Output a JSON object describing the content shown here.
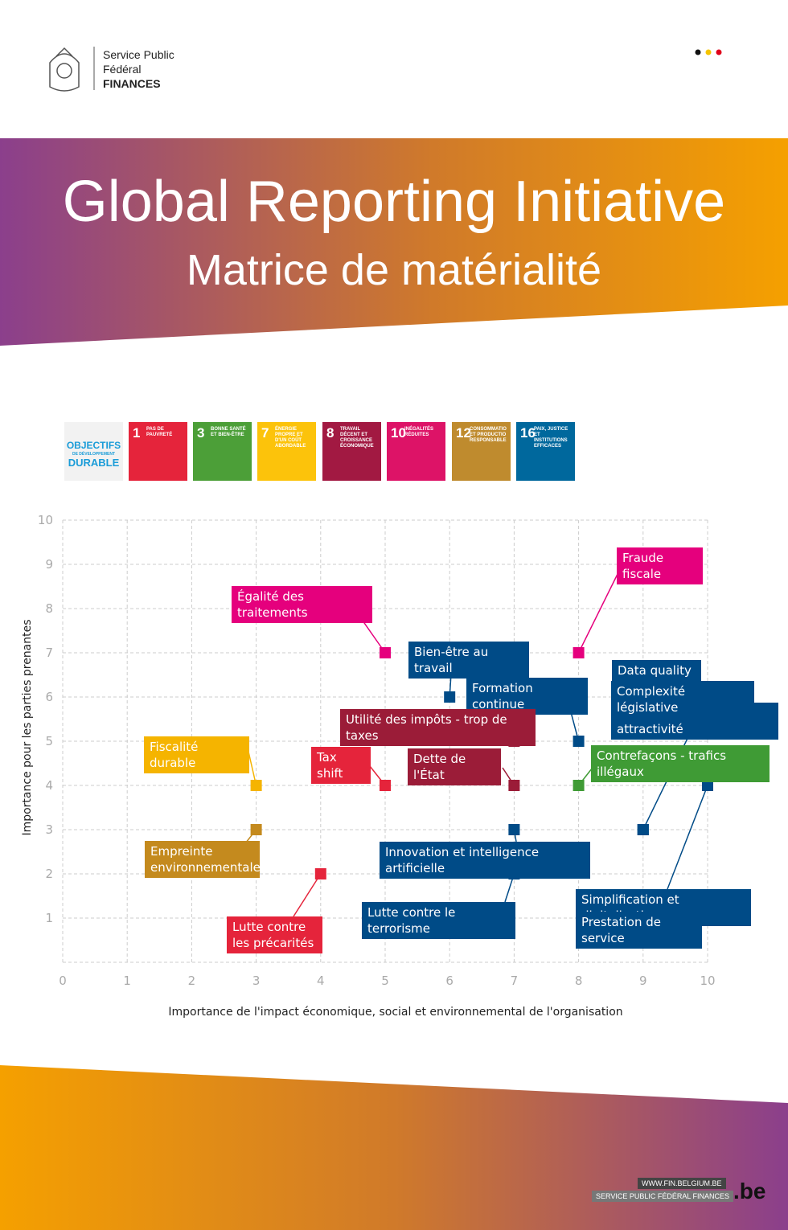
{
  "header": {
    "org": [
      "Service Public",
      "Fédéral",
      "FINANCES"
    ]
  },
  "banner": {
    "title": "Global Reporting Initiative",
    "subtitle": "Matrice de matérialité"
  },
  "sdg": {
    "logo": [
      "OBJECTIFS",
      "DE DÉVELOPPEMENT",
      "DURABLE"
    ],
    "goals": [
      {
        "number": "1",
        "label": "PAS DE PAUVRETÉ",
        "color": "#e5243b"
      },
      {
        "number": "3",
        "label": "BONNE SANTÉ ET BIEN-ÊTRE",
        "color": "#4c9f38"
      },
      {
        "number": "7",
        "label": "ÉNERGIE PROPRE ET D'UN COÛT ABORDABLE",
        "color": "#fcc30b"
      },
      {
        "number": "8",
        "label": "TRAVAIL DÉCENT ET CROISSANCE ÉCONOMIQUE",
        "color": "#a21942"
      },
      {
        "number": "10",
        "label": "INÉGALITÉS RÉDUITES",
        "color": "#dd1367"
      },
      {
        "number": "12",
        "label": "CONSOMMATIO ET PRODUCTIO RESPONSABLE",
        "color": "#bf8b2e"
      },
      {
        "number": "16",
        "label": "PAIX, JUSTICE ET INSTITUTIONS EFFICACES",
        "color": "#00689d"
      }
    ]
  },
  "chart_data": {
    "type": "scatter",
    "xlabel": "Importance de l'impact économique, social et environnemental de l'organisation",
    "ylabel": "Importance pour les parties prenantes",
    "xlim": [
      0,
      10
    ],
    "ylim": [
      0,
      10
    ],
    "xticks": [
      0,
      1,
      2,
      3,
      4,
      5,
      6,
      7,
      8,
      9,
      10
    ],
    "yticks": [
      1,
      2,
      3,
      4,
      5,
      6,
      7,
      8,
      9,
      10
    ],
    "grid": true,
    "points": [
      {
        "label": "Fraude fiscale",
        "x": 8,
        "y": 7,
        "color": "#e5007d"
      },
      {
        "label": "Égalité des traitements",
        "x": 5,
        "y": 7,
        "color": "#e5007d"
      },
      {
        "label": "Bien-être au travail",
        "x": 6,
        "y": 6,
        "color": "#004b87"
      },
      {
        "label": "Formation continue",
        "x": 8,
        "y": 5,
        "color": "#004b87"
      },
      {
        "label": "Utilité des impôts - trop de taxes",
        "x": 7,
        "y": 5,
        "color": "#9b1c38"
      },
      {
        "label": "Dette de l'État",
        "x": 7,
        "y": 4,
        "color": "#9b1c38"
      },
      {
        "label": "Tax shift",
        "x": 5,
        "y": 4,
        "color": "#e5243b"
      },
      {
        "label": "Fiscalité durable",
        "x": 3,
        "y": 4,
        "color": "#f5b400"
      },
      {
        "label": "Empreinte environnementale",
        "x": 3,
        "y": 3,
        "color": "#c48a1e"
      },
      {
        "label": "Lutte contre les précarités",
        "x": 4,
        "y": 2,
        "color": "#e5243b"
      },
      {
        "label": "Innovation et intelligence artificielle",
        "x": 7,
        "y": 3,
        "color": "#004b87"
      },
      {
        "label": "Lutte contre le terrorisme",
        "x": 7,
        "y": 2,
        "color": "#004b87"
      },
      {
        "label": "Contrefaçons - trafics illégaux",
        "x": 8,
        "y": 4,
        "color": "#3f9b35"
      },
      {
        "label": "Recrutement et attractivité",
        "x": 9,
        "y": 3,
        "color": "#004b87"
      },
      {
        "label": "Data quality",
        "x": 9,
        "y": 3,
        "color": "#004b87"
      },
      {
        "label": "Complexité législative",
        "x": 9,
        "y": 3,
        "color": "#004b87"
      },
      {
        "label": "Simplification et digitalisation",
        "x": 10,
        "y": 4,
        "color": "#004b87"
      },
      {
        "label": "Prestation de service",
        "x": 10,
        "y": 4,
        "color": "#004b87"
      }
    ]
  },
  "footer": {
    "url": "WWW.FIN.BELGIUM.BE",
    "service": "SERVICE PUBLIC FÉDÉRAL FINANCES",
    "domain": ".be"
  }
}
